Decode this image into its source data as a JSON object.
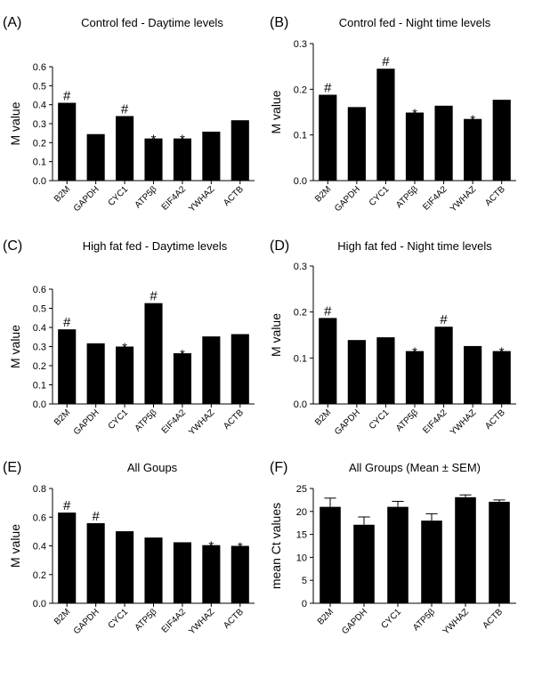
{
  "chart_data": [
    {
      "type": "bar",
      "panel": "(A)",
      "title": "Control fed - Daytime levels",
      "ylabel": "M value",
      "ylim": [
        0,
        0.6
      ],
      "yticks": [
        "0.0",
        "0.1",
        "0.2",
        "0.3",
        "0.4",
        "0.5",
        "0.6"
      ],
      "categories": [
        "B2M",
        "GAPDH",
        "CYC1",
        "ATP5β",
        "EIF4A2",
        "YWHAZ",
        "ACTB"
      ],
      "values": [
        0.41,
        0.245,
        0.34,
        0.222,
        0.222,
        0.258,
        0.318
      ],
      "markers": [
        "#",
        "",
        "#",
        "*",
        "*",
        "",
        ""
      ]
    },
    {
      "type": "bar",
      "panel": "(B)",
      "title": "Control fed - Night time levels",
      "ylabel": "M value",
      "ylim": [
        0,
        0.3
      ],
      "yticks": [
        "0.0",
        "0.1",
        "0.2",
        "0.3"
      ],
      "categories": [
        "B2M",
        "GAPDH",
        "CYC1",
        "ATP5β",
        "EIF4A2",
        "YWHAZ",
        "ACTB"
      ],
      "values": [
        0.188,
        0.161,
        0.245,
        0.149,
        0.164,
        0.135,
        0.177
      ],
      "markers": [
        "#",
        "",
        "#",
        "*",
        "",
        "*",
        ""
      ]
    },
    {
      "type": "bar",
      "panel": "(C)",
      "title": "High fat fed - Daytime levels",
      "ylabel": "M value",
      "ylim": [
        0,
        0.6
      ],
      "yticks": [
        "0.0",
        "0.1",
        "0.2",
        "0.3",
        "0.4",
        "0.5",
        "0.6"
      ],
      "categories": [
        "B2M",
        "GAPDH",
        "CYC1",
        "ATP5β",
        "EIF4A2",
        "YWHAZ",
        "ACTB"
      ],
      "values": [
        0.39,
        0.317,
        0.3,
        0.527,
        0.265,
        0.353,
        0.365
      ],
      "markers": [
        "#",
        "",
        "*",
        "#",
        "*",
        "",
        ""
      ]
    },
    {
      "type": "bar",
      "panel": "(D)",
      "title": "High fat fed - Night time levels",
      "ylabel": "M value",
      "ylim": [
        0,
        0.3
      ],
      "yticks": [
        "0.0",
        "0.1",
        "0.2",
        "0.3"
      ],
      "categories": [
        "B2M",
        "GAPDH",
        "CYC1",
        "ATP5β",
        "EIF4A2",
        "YWHAZ",
        "ACTB"
      ],
      "values": [
        0.187,
        0.139,
        0.145,
        0.115,
        0.168,
        0.126,
        0.115
      ],
      "markers": [
        "#",
        "",
        "",
        "*",
        "#",
        "",
        "*"
      ]
    },
    {
      "type": "bar",
      "panel": "(E)",
      "title": "All Goups",
      "ylabel": "M value",
      "ylim": [
        0,
        0.8
      ],
      "yticks": [
        "0.0",
        "0.2",
        "0.4",
        "0.6",
        "0.8"
      ],
      "categories": [
        "B2M",
        "GAPDH",
        "CYC1",
        "ATP5β",
        "EIF4A2",
        "YWHAZ",
        "ACTB"
      ],
      "values": [
        0.632,
        0.558,
        0.502,
        0.458,
        0.425,
        0.405,
        0.4
      ],
      "markers": [
        "#",
        "#",
        "",
        "",
        "",
        "*",
        "*"
      ]
    },
    {
      "type": "bar",
      "panel": "(F)",
      "title": "All Groups (Mean ± SEM)",
      "ylabel": "mean Ct values",
      "ylim": [
        0,
        25
      ],
      "yticks": [
        "0",
        "5",
        "10",
        "15",
        "20",
        "25"
      ],
      "categories": [
        "B2M",
        "GAPDH",
        "CYC1",
        "ATP5β",
        "YWHAZ",
        "ACTB"
      ],
      "values": [
        21.0,
        17.1,
        21.0,
        18.0,
        23.1,
        22.1
      ],
      "errors": [
        1.9,
        1.7,
        1.2,
        1.5,
        0.5,
        0.4
      ],
      "markers": [
        "",
        "",
        "",
        "",
        "",
        ""
      ]
    }
  ]
}
